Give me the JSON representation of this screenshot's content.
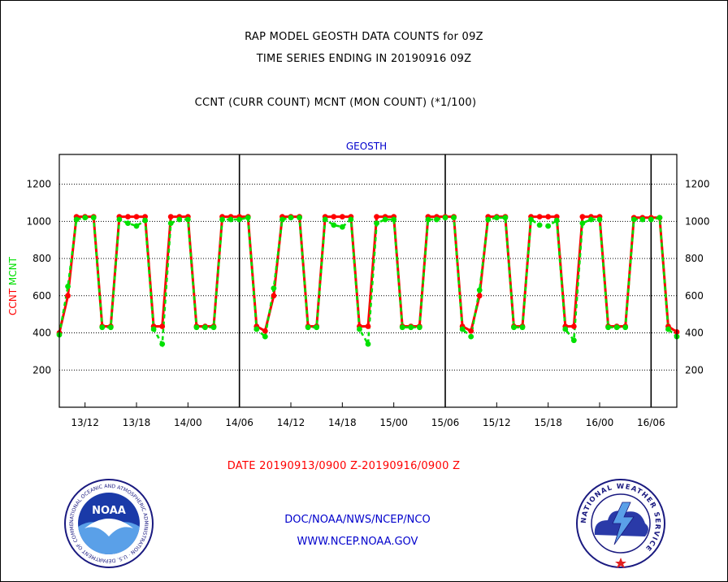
{
  "header": {
    "title_line1": "RAP MODEL GEOSTH DATA COUNTS for 09Z",
    "title_line2": "TIME SERIES ENDING IN 20190916 09Z",
    "subtitle": "CCNT (CURR COUNT) MCNT (MON COUNT) (*1/100)"
  },
  "footer": {
    "date_range": "DATE 20190913/0900 Z-20190916/0900 Z",
    "org": "DOC/NOAA/NWS/NCEP/NCO",
    "website": "WWW.NCEP.NOAA.GOV"
  },
  "logos": {
    "left": {
      "name": "NOAA",
      "ring_text": "NATIONAL OCEANIC AND ATMOSPHERIC ADMINISTRATION · U.S. DEPARTMENT OF COMMERCE"
    },
    "right": {
      "ring_text": "NATIONAL WEATHER SERVICE"
    }
  },
  "colors": {
    "ccnt": "#ff0000",
    "mcnt": "#00e000",
    "panel_label": "#0000cc",
    "footer_text": "#0000cc",
    "date_text": "#ff0000"
  },
  "chart_data": {
    "type": "line",
    "panel_label": "GEOSTH",
    "ylabel_parts": [
      {
        "text": "CCNT",
        "color": "#ff0000"
      },
      {
        "text": "MCNT",
        "color": "#00e000"
      }
    ],
    "ylim": [
      0,
      1200
    ],
    "y_ticks": [
      200,
      400,
      600,
      800,
      1000,
      1200
    ],
    "x_tick_labels": [
      "13/12",
      "13/18",
      "14/00",
      "14/06",
      "14/12",
      "14/18",
      "15/00",
      "15/06",
      "15/12",
      "15/18",
      "16/00",
      "16/06"
    ],
    "x_tick_hours": [
      3,
      9,
      15,
      21,
      27,
      33,
      39,
      45,
      51,
      57,
      63,
      69
    ],
    "day_boundaries_hours": [
      21,
      45,
      69
    ],
    "grid": "horizontal dotted",
    "series": [
      {
        "name": "CCNT",
        "x_hours": [
          0,
          1,
          2,
          3,
          4,
          5,
          6,
          7,
          8,
          9,
          10,
          11,
          12,
          13,
          14,
          15,
          16,
          17,
          18,
          19,
          20,
          21,
          22,
          23,
          24,
          25,
          26,
          27,
          28,
          29,
          30,
          31,
          32,
          33,
          34,
          35,
          36,
          37,
          38,
          39,
          40,
          41,
          42,
          43,
          44,
          45,
          46,
          47,
          48,
          49,
          50,
          51,
          52,
          53,
          54,
          55,
          56,
          57,
          58,
          59,
          60,
          61,
          62,
          63,
          64,
          65,
          66,
          67,
          68,
          69,
          70,
          71,
          72
        ],
        "values": [
          400,
          600,
          1025,
          1025,
          1025,
          435,
          435,
          1025,
          1025,
          1025,
          1025,
          435,
          435,
          1025,
          1025,
          1025,
          435,
          435,
          435,
          1025,
          1025,
          1025,
          1025,
          435,
          410,
          600,
          1025,
          1025,
          1025,
          435,
          435,
          1025,
          1025,
          1025,
          1025,
          435,
          435,
          1025,
          1025,
          1025,
          435,
          435,
          435,
          1025,
          1025,
          1025,
          1025,
          435,
          410,
          600,
          1025,
          1025,
          1025,
          435,
          435,
          1025,
          1025,
          1025,
          1025,
          435,
          435,
          1025,
          1025,
          1025,
          435,
          435,
          435,
          1020,
          1020,
          1020,
          1020,
          435,
          405
        ]
      },
      {
        "name": "MCNT",
        "x_hours": [
          0,
          1,
          2,
          3,
          4,
          5,
          6,
          7,
          8,
          9,
          10,
          11,
          12,
          13,
          14,
          15,
          16,
          17,
          18,
          19,
          20,
          21,
          22,
          23,
          24,
          25,
          26,
          27,
          28,
          29,
          30,
          31,
          32,
          33,
          34,
          35,
          36,
          37,
          38,
          39,
          40,
          41,
          42,
          43,
          44,
          45,
          46,
          47,
          48,
          49,
          50,
          51,
          52,
          53,
          54,
          55,
          56,
          57,
          58,
          59,
          60,
          61,
          62,
          63,
          64,
          65,
          66,
          67,
          68,
          69,
          70,
          71,
          72
        ],
        "values": [
          390,
          650,
          1010,
          1020,
          1020,
          430,
          430,
          1010,
          990,
          975,
          1005,
          420,
          340,
          990,
          1010,
          1010,
          430,
          430,
          430,
          1010,
          1010,
          1010,
          1020,
          420,
          380,
          640,
          1010,
          1020,
          1020,
          430,
          430,
          1010,
          980,
          970,
          1010,
          420,
          340,
          990,
          1010,
          1010,
          430,
          430,
          430,
          1010,
          1010,
          1020,
          1020,
          420,
          380,
          630,
          1010,
          1020,
          1020,
          430,
          430,
          1010,
          980,
          975,
          1005,
          420,
          360,
          990,
          1010,
          1010,
          430,
          430,
          430,
          1010,
          1010,
          1010,
          1020,
          420,
          380
        ]
      }
    ]
  }
}
